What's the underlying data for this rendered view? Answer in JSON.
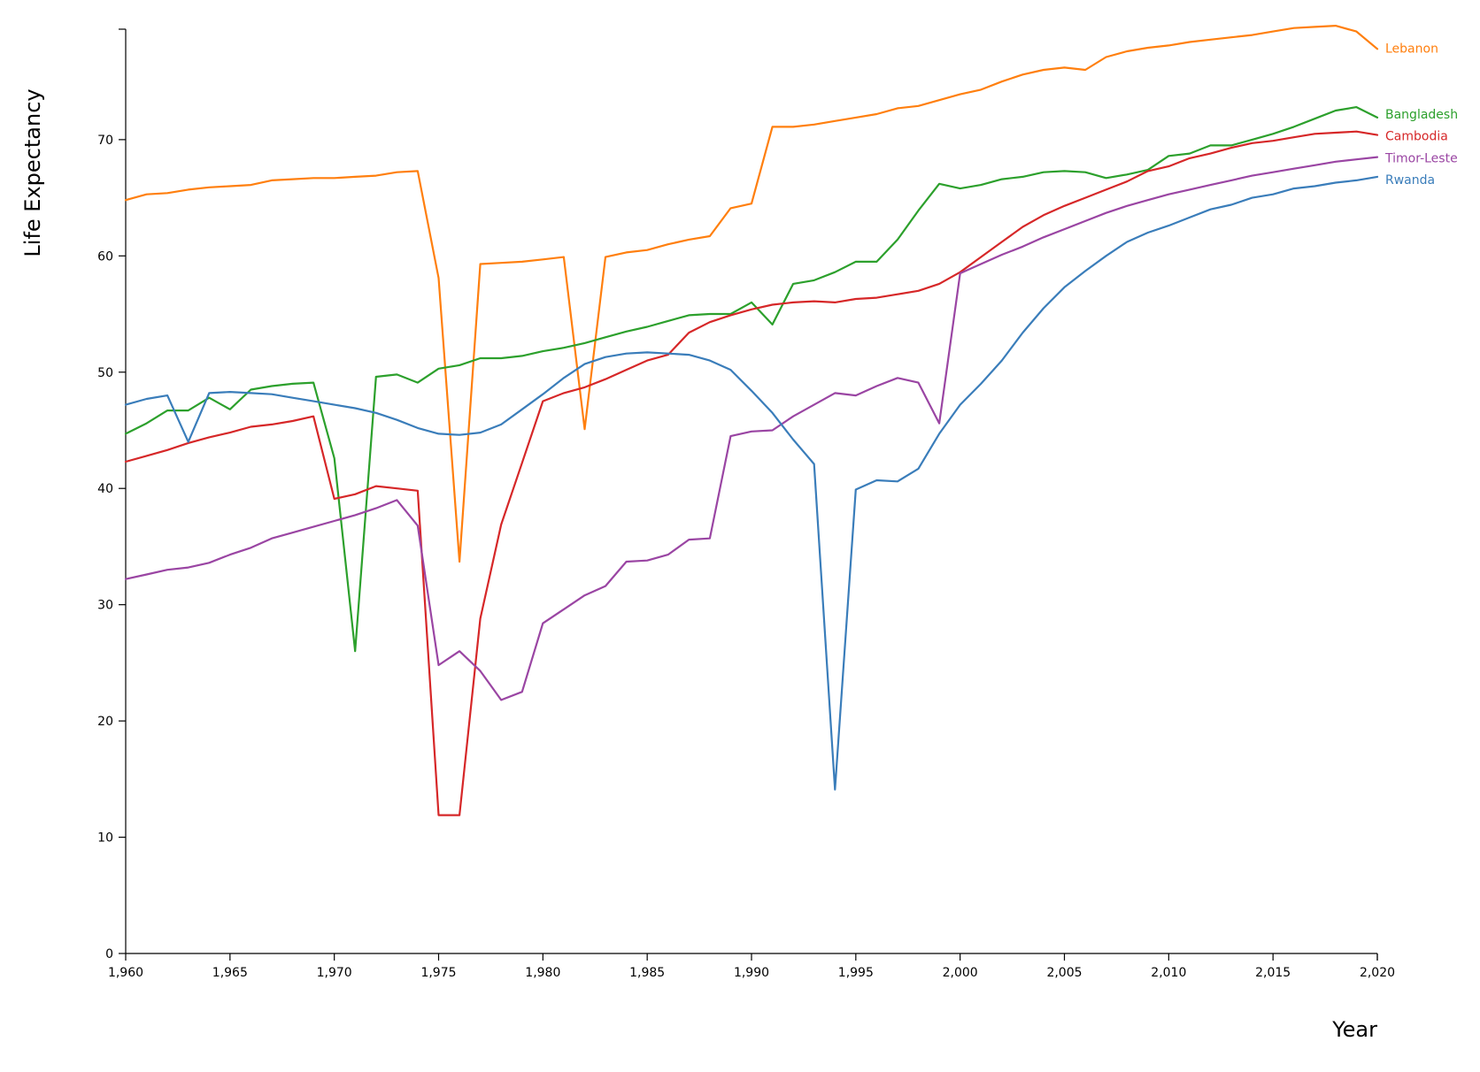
{
  "chart_data": {
    "type": "line",
    "title": "",
    "xlabel": "Year",
    "ylabel": "Life Expectancy",
    "xlim": [
      1960,
      2020
    ],
    "ylim": [
      0,
      79.5
    ],
    "x_ticks": [
      1960,
      1965,
      1970,
      1975,
      1980,
      1985,
      1990,
      1995,
      2000,
      2005,
      2010,
      2015,
      2020
    ],
    "x_tick_labels": [
      "1,960",
      "1,965",
      "1,970",
      "1,975",
      "1,980",
      "1,985",
      "1,990",
      "1,995",
      "2,000",
      "2,005",
      "2,010",
      "2,015",
      "2,020"
    ],
    "y_ticks": [
      0,
      10,
      20,
      30,
      40,
      50,
      60,
      70
    ],
    "y_tick_labels": [
      "0",
      "10",
      "20",
      "30",
      "40",
      "50",
      "60",
      "70"
    ],
    "grid": false,
    "legend": "inline labels at right end of each line",
    "x_start": 1960,
    "series": [
      {
        "name": "Lebanon",
        "color": "#ff7f0e",
        "values": [
          64.8,
          65.3,
          65.4,
          65.7,
          65.9,
          66.0,
          66.1,
          66.5,
          66.6,
          66.7,
          66.7,
          66.8,
          66.9,
          67.2,
          67.3,
          58.1,
          33.7,
          59.3,
          59.4,
          59.5,
          59.7,
          59.9,
          45.1,
          59.9,
          60.3,
          60.5,
          61.0,
          61.4,
          61.7,
          64.1,
          64.5,
          71.1,
          71.1,
          71.3,
          71.6,
          71.9,
          72.2,
          72.7,
          72.9,
          73.4,
          73.9,
          74.3,
          75.0,
          75.6,
          76.0,
          76.2,
          76.0,
          77.1,
          77.6,
          77.9,
          78.1,
          78.4,
          78.6,
          78.8,
          79.0,
          79.3,
          79.6,
          79.7,
          79.8,
          79.3,
          77.8
        ]
      },
      {
        "name": "Bangladesh",
        "color": "#2ca02c",
        "values": [
          44.7,
          45.6,
          46.7,
          46.7,
          47.8,
          46.8,
          48.5,
          48.8,
          49.0,
          49.1,
          42.6,
          26.0,
          49.6,
          49.8,
          49.1,
          50.3,
          50.6,
          51.2,
          51.2,
          51.4,
          51.8,
          52.1,
          52.5,
          53.0,
          53.5,
          53.9,
          54.4,
          54.9,
          55.0,
          55.0,
          56.0,
          54.1,
          57.6,
          57.9,
          58.6,
          59.5,
          59.5,
          61.4,
          63.9,
          66.2,
          65.8,
          66.1,
          66.6,
          66.8,
          67.2,
          67.3,
          67.2,
          66.7,
          67.0,
          67.4,
          68.6,
          68.8,
          69.5,
          69.5,
          70.0,
          70.5,
          71.1,
          71.8,
          72.5,
          72.8,
          71.9
        ]
      },
      {
        "name": "Cambodia",
        "color": "#d62728",
        "values": [
          42.3,
          42.8,
          43.3,
          43.9,
          44.4,
          44.8,
          45.3,
          45.5,
          45.8,
          46.2,
          39.1,
          39.5,
          40.2,
          40.0,
          39.8,
          11.9,
          11.9,
          28.8,
          36.9,
          42.2,
          47.5,
          48.2,
          48.7,
          49.4,
          50.2,
          51.0,
          51.5,
          53.4,
          54.3,
          54.9,
          55.4,
          55.8,
          56.0,
          56.1,
          56.0,
          56.3,
          56.4,
          56.7,
          57.0,
          57.6,
          58.6,
          59.9,
          61.2,
          62.5,
          63.5,
          64.3,
          65.0,
          65.7,
          66.4,
          67.3,
          67.7,
          68.4,
          68.8,
          69.3,
          69.7,
          69.9,
          70.2,
          70.5,
          70.6,
          70.7,
          70.4
        ]
      },
      {
        "name": "Timor-Leste",
        "color": "#9a45a3",
        "values": [
          32.2,
          32.6,
          33.0,
          33.2,
          33.6,
          34.3,
          34.9,
          35.7,
          36.2,
          36.7,
          37.2,
          37.7,
          38.3,
          39.0,
          36.8,
          24.8,
          26.0,
          24.3,
          21.8,
          22.5,
          28.4,
          29.6,
          30.8,
          31.6,
          33.7,
          33.8,
          34.3,
          35.6,
          35.7,
          44.5,
          44.9,
          45.0,
          46.2,
          47.2,
          48.2,
          48.0,
          48.8,
          49.5,
          49.1,
          45.6,
          58.5,
          59.3,
          60.1,
          60.8,
          61.6,
          62.3,
          63.0,
          63.7,
          64.3,
          64.8,
          65.3,
          65.7,
          66.1,
          66.5,
          66.9,
          67.2,
          67.5,
          67.8,
          68.1,
          68.3,
          68.5
        ]
      },
      {
        "name": "Rwanda",
        "color": "#3a7dba",
        "values": [
          47.2,
          47.7,
          48.0,
          44.0,
          48.2,
          48.3,
          48.2,
          48.1,
          47.8,
          47.5,
          47.2,
          46.9,
          46.5,
          45.9,
          45.2,
          44.7,
          44.6,
          44.8,
          45.5,
          46.8,
          48.1,
          49.5,
          50.7,
          51.3,
          51.6,
          51.7,
          51.6,
          51.5,
          51.0,
          50.2,
          48.4,
          46.5,
          44.2,
          42.1,
          14.1,
          39.9,
          40.7,
          40.6,
          41.7,
          44.7,
          47.2,
          49.0,
          51.0,
          53.4,
          55.5,
          57.3,
          58.7,
          60.0,
          61.2,
          62.0,
          62.6,
          63.3,
          64.0,
          64.4,
          65.0,
          65.3,
          65.8,
          66.0,
          66.3,
          66.5,
          66.8
        ]
      }
    ]
  }
}
